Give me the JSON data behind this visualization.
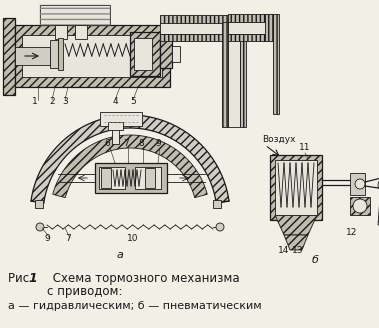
{
  "bg_color": "#f2efe6",
  "line_color": "#1a1a1a",
  "hatch_fc": "#c0bcb0",
  "light_fc": "#e8e5dc",
  "mid_fc": "#d0cdc4",
  "fig_width": 3.79,
  "fig_height": 3.28,
  "dpi": 100,
  "caption1": "Рис. ",
  "caption1b": "1",
  "caption2": "     Схема тормозного механизма",
  "caption3": "с приводом:",
  "caption4": "а — гидравлическим; б — пневматическим",
  "label_a": "а",
  "label_b": "б",
  "vozduh": "Воздух"
}
